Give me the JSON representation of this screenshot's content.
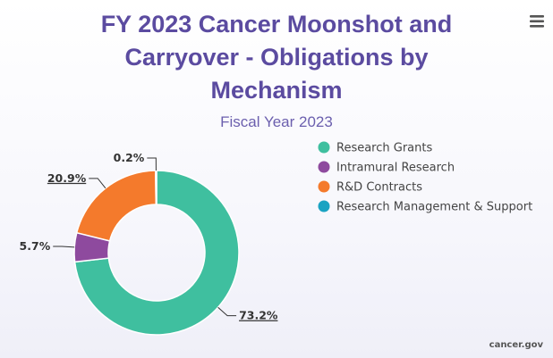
{
  "chart_data": {
    "type": "pie",
    "title": "FY 2023 Cancer Moonshot and Carryover - Obligations by Mechanism",
    "title_lines": [
      "FY 2023 Cancer Moonshot and",
      "Carryover - Obligations by",
      "Mechanism"
    ],
    "subtitle": "Fiscal Year 2023",
    "donut": true,
    "legend_position": "right",
    "slices": [
      {
        "name": "Research Grants",
        "value": 73.2,
        "label": "73.2%",
        "color": "#3fbf9f"
      },
      {
        "name": "Intramural Research",
        "value": 5.7,
        "label": "5.7%",
        "color": "#8e4a9e"
      },
      {
        "name": "R&D Contracts",
        "value": 20.9,
        "label": "20.9%",
        "color": "#f47a2c"
      },
      {
        "name": "Research Management & Support",
        "value": 0.2,
        "label": "0.2%",
        "color": "#1aa3c2"
      }
    ]
  },
  "credits": "cancer.gov",
  "menu": {
    "icon": "hamburger-menu-icon"
  }
}
